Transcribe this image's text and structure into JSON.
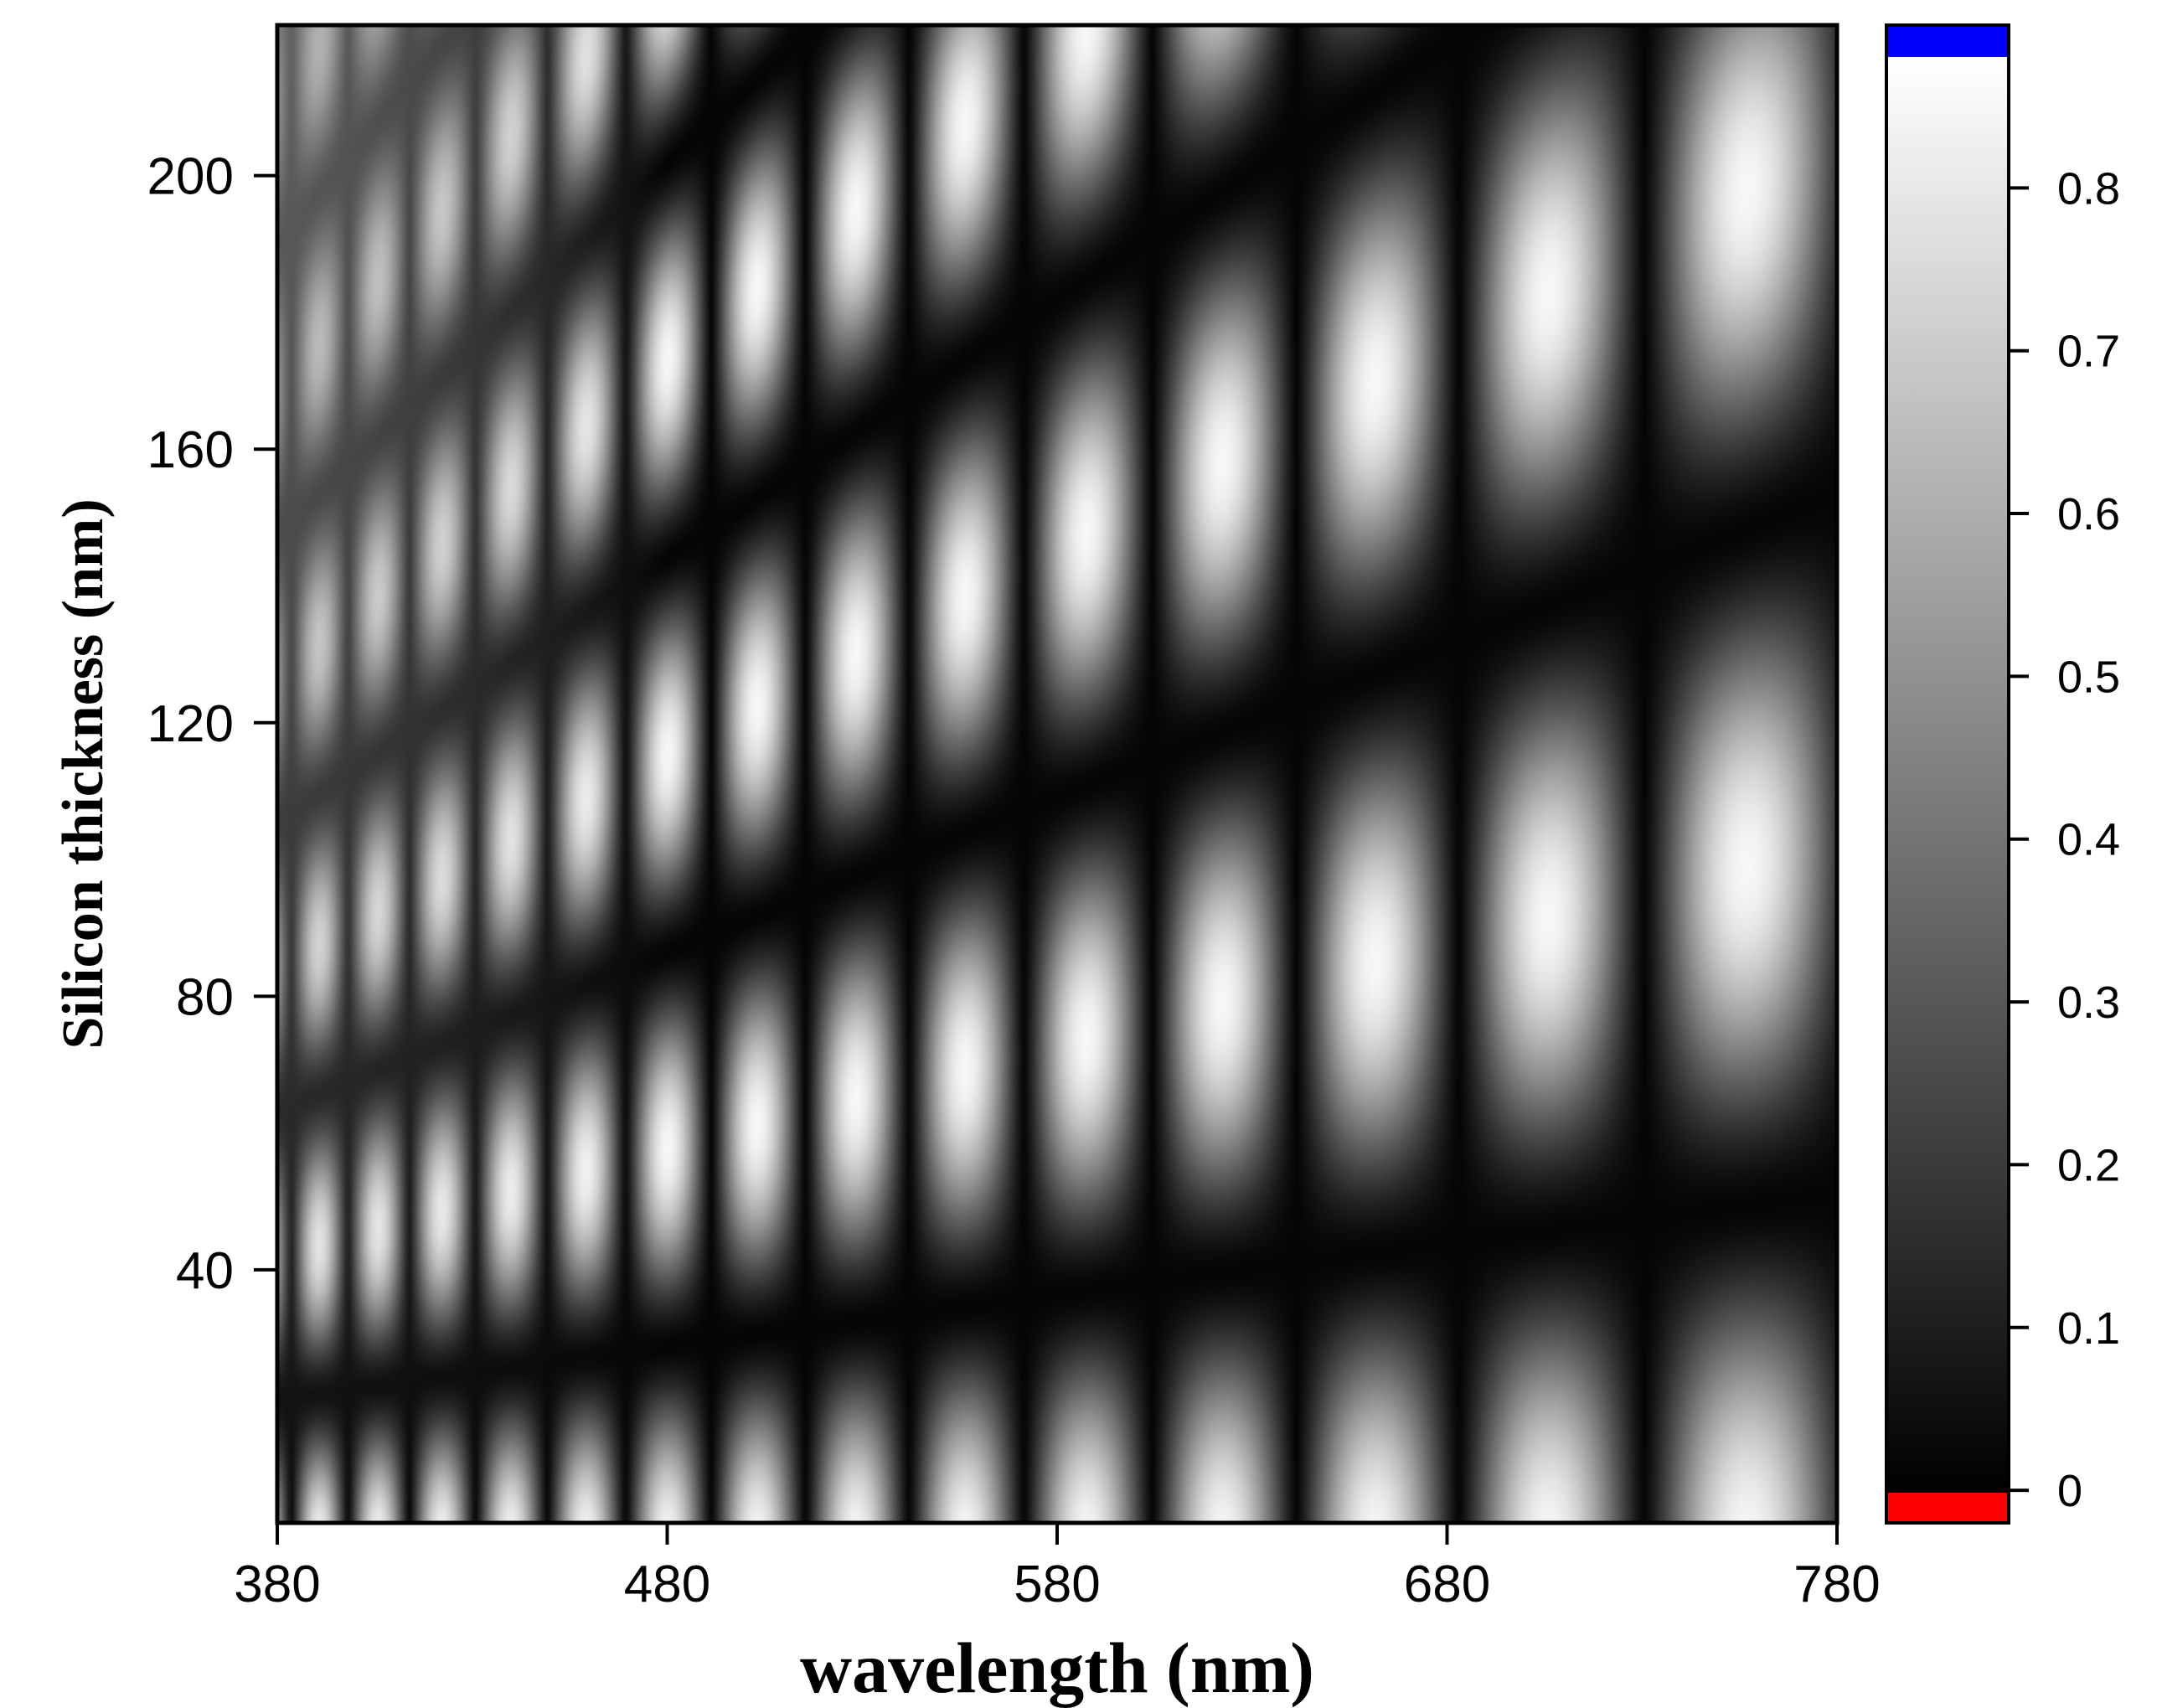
{
  "chart_data": {
    "type": "heatmap",
    "xlabel": "wavelength (nm)",
    "ylabel": "Silicon thickness (nm)",
    "xlim": [
      380,
      780
    ],
    "ylim": [
      3,
      222
    ],
    "x_ticks": [
      380,
      480,
      580,
      680,
      780
    ],
    "y_ticks": [
      40,
      80,
      120,
      160,
      200
    ],
    "x_tick_labels": [
      "380",
      "480",
      "580",
      "680",
      "780"
    ],
    "y_tick_labels": [
      "40",
      "80",
      "120",
      "160",
      "200"
    ],
    "colorbar": {
      "range": [
        -0.02,
        0.9
      ],
      "ticks": [
        0,
        0.1,
        0.2,
        0.3,
        0.4,
        0.5,
        0.6,
        0.7,
        0.8
      ],
      "tick_labels": [
        "0",
        "0.1",
        "0.2",
        "0.3",
        "0.4",
        "0.5",
        "0.6",
        "0.7",
        "0.8"
      ],
      "colormap": "grayscale",
      "under_color": "#ff0000",
      "over_color": "#0000ff"
    },
    "grid": false,
    "description_of_pattern": "interference fringes: bright elliptical lobes separated by dark diagonal bands and near-vertical dark bands; fringe spacing increases with wavelength"
  }
}
